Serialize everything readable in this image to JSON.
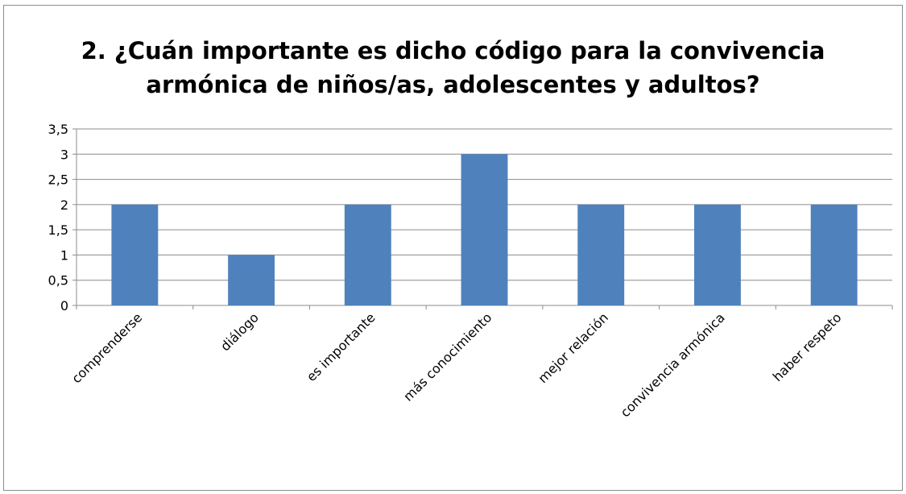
{
  "chart_data": {
    "type": "bar",
    "title_lines": [
      "2. ¿Cuán importante es dicho código para la convivencia",
      "armónica de niños/as, adolescentes y adultos?"
    ],
    "categories": [
      "comprenderse",
      "diálogo",
      "es importante",
      "más conocimiento",
      "mejor relación",
      "convivencia armónica",
      "haber respeto"
    ],
    "values": [
      2,
      1,
      2,
      3,
      2,
      2,
      2
    ],
    "ylim": [
      0,
      3.5
    ],
    "yticks": [
      "0",
      "0,5",
      "1",
      "1,5",
      "2",
      "2,5",
      "3",
      "3,5"
    ],
    "grid": true,
    "colors": {
      "bar": "#4f81bd",
      "grid": "#8c8c8c",
      "axis": "#8c8c8c"
    }
  }
}
